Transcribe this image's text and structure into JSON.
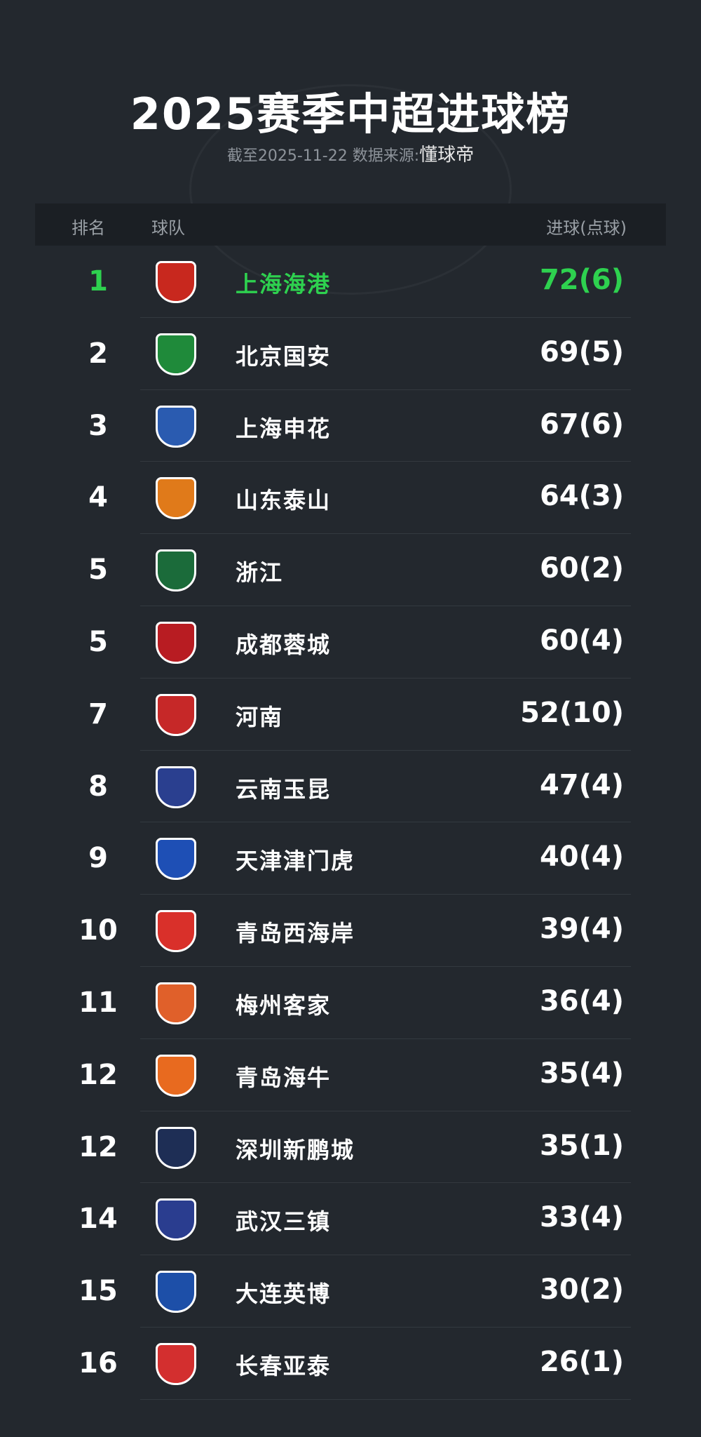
{
  "title": "2025赛季中超进球榜",
  "subtitle_prefix": "截至2025-11-22 数据来源:",
  "subtitle_source": "懂球帝",
  "header": {
    "rank": "排名",
    "team": "球队",
    "goals": "进球(点球)"
  },
  "accent": "#2ed14f",
  "rows": [
    {
      "rank": "1",
      "team": "上海海港",
      "goals": "72(6)",
      "logo_color": "#c8281e"
    },
    {
      "rank": "2",
      "team": "北京国安",
      "goals": "69(5)",
      "logo_color": "#1f8a3a"
    },
    {
      "rank": "3",
      "team": "上海申花",
      "goals": "67(6)",
      "logo_color": "#2a5bb0"
    },
    {
      "rank": "4",
      "team": "山东泰山",
      "goals": "64(3)",
      "logo_color": "#e07a1a"
    },
    {
      "rank": "5",
      "team": "浙江",
      "goals": "60(2)",
      "logo_color": "#1b6b3a"
    },
    {
      "rank": "5",
      "team": "成都蓉城",
      "goals": "60(4)",
      "logo_color": "#b81c22"
    },
    {
      "rank": "7",
      "team": "河南",
      "goals": "52(10)",
      "logo_color": "#c62828"
    },
    {
      "rank": "8",
      "team": "云南玉昆",
      "goals": "47(4)",
      "logo_color": "#2a3f8f"
    },
    {
      "rank": "9",
      "team": "天津津门虎",
      "goals": "40(4)",
      "logo_color": "#1e4fb5"
    },
    {
      "rank": "10",
      "team": "青岛西海岸",
      "goals": "39(4)",
      "logo_color": "#d9302a"
    },
    {
      "rank": "11",
      "team": "梅州客家",
      "goals": "36(4)",
      "logo_color": "#e0602a"
    },
    {
      "rank": "12",
      "team": "青岛海牛",
      "goals": "35(4)",
      "logo_color": "#e86a1f"
    },
    {
      "rank": "12",
      "team": "深圳新鹏城",
      "goals": "35(1)",
      "logo_color": "#1e2e55"
    },
    {
      "rank": "14",
      "team": "武汉三镇",
      "goals": "33(4)",
      "logo_color": "#2a3d8f"
    },
    {
      "rank": "15",
      "team": "大连英博",
      "goals": "30(2)",
      "logo_color": "#1d4fa8"
    },
    {
      "rank": "16",
      "team": "长春亚泰",
      "goals": "26(1)",
      "logo_color": "#d32f2f"
    }
  ]
}
